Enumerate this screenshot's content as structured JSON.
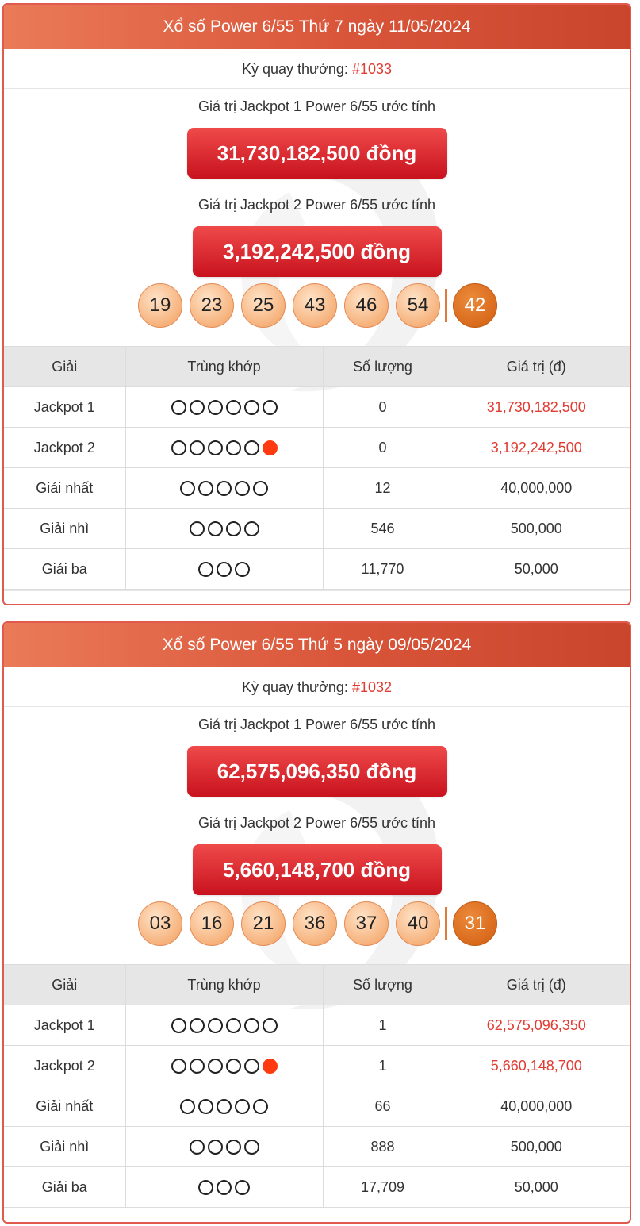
{
  "colors": {
    "header": "#d9553a",
    "accent_red": "#e23b32",
    "match_filled": "#ff3a10",
    "power_ball": "#d96a1c"
  },
  "draws": [
    {
      "title": "Xổ số Power 6/55 Thứ 7 ngày 11/05/2024",
      "ky_label": "Kỳ quay thưởng:",
      "ky_num": "#1033",
      "jackpot1_label": "Giá trị Jackpot 1 Power 6/55 ước tính",
      "jackpot1_value": "31,730,182,500 đồng",
      "jackpot2_label": "Giá trị Jackpot 2 Power 6/55 ước tính",
      "jackpot2_value": "3,192,242,500 đồng",
      "balls": [
        "19",
        "23",
        "25",
        "43",
        "46",
        "54"
      ],
      "power_ball": "42",
      "table": {
        "headers": [
          "Giải",
          "Trùng khớp",
          "Số lượng",
          "Giá trị (đ)"
        ],
        "rows": [
          {
            "prize": "Jackpot 1",
            "match_open": 6,
            "match_filled": 0,
            "count": "0",
            "value": "31,730,182,500",
            "value_red": true
          },
          {
            "prize": "Jackpot 2",
            "match_open": 5,
            "match_filled": 1,
            "count": "0",
            "value": "3,192,242,500",
            "value_red": true
          },
          {
            "prize": "Giải nhất",
            "match_open": 5,
            "match_filled": 0,
            "count": "12",
            "value": "40,000,000",
            "value_red": false
          },
          {
            "prize": "Giải nhì",
            "match_open": 4,
            "match_filled": 0,
            "count": "546",
            "value": "500,000",
            "value_red": false
          },
          {
            "prize": "Giải ba",
            "match_open": 3,
            "match_filled": 0,
            "count": "11,770",
            "value": "50,000",
            "value_red": false
          }
        ]
      }
    },
    {
      "title": "Xổ số Power 6/55 Thứ 5 ngày 09/05/2024",
      "ky_label": "Kỳ quay thưởng:",
      "ky_num": "#1032",
      "jackpot1_label": "Giá trị Jackpot 1 Power 6/55 ước tính",
      "jackpot1_value": "62,575,096,350 đồng",
      "jackpot2_label": "Giá trị Jackpot 2 Power 6/55 ước tính",
      "jackpot2_value": "5,660,148,700 đồng",
      "balls": [
        "03",
        "16",
        "21",
        "36",
        "37",
        "40"
      ],
      "power_ball": "31",
      "table": {
        "headers": [
          "Giải",
          "Trùng khớp",
          "Số lượng",
          "Giá trị (đ)"
        ],
        "rows": [
          {
            "prize": "Jackpot 1",
            "match_open": 6,
            "match_filled": 0,
            "count": "1",
            "value": "62,575,096,350",
            "value_red": true
          },
          {
            "prize": "Jackpot 2",
            "match_open": 5,
            "match_filled": 1,
            "count": "1",
            "value": "5,660,148,700",
            "value_red": true
          },
          {
            "prize": "Giải nhất",
            "match_open": 5,
            "match_filled": 0,
            "count": "66",
            "value": "40,000,000",
            "value_red": false
          },
          {
            "prize": "Giải nhì",
            "match_open": 4,
            "match_filled": 0,
            "count": "888",
            "value": "500,000",
            "value_red": false
          },
          {
            "prize": "Giải ba",
            "match_open": 3,
            "match_filled": 0,
            "count": "17,709",
            "value": "50,000",
            "value_red": false
          }
        ]
      }
    }
  ]
}
